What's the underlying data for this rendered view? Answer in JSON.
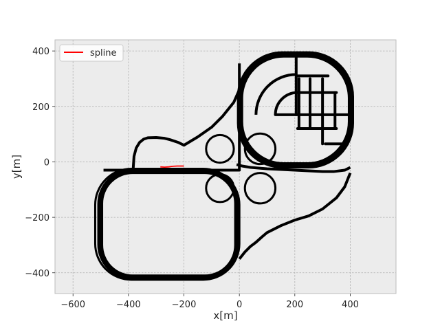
{
  "chart_data": {
    "type": "line",
    "title": "",
    "xlabel": "x[m]",
    "ylabel": "y[m]",
    "xlim": [
      -665,
      565
    ],
    "ylim": [
      -475,
      440
    ],
    "xticks": [
      -600,
      -400,
      -200,
      0,
      200,
      400
    ],
    "yticks": [
      -400,
      -200,
      0,
      200,
      400
    ],
    "xtick_labels": [
      "−600",
      "−400",
      "−200",
      "0",
      "200",
      "400"
    ],
    "ytick_labels": [
      "−400",
      "−200",
      "0",
      "200",
      "400"
    ],
    "grid": true,
    "legend_placement": "top-left",
    "background_color": "#ececec",
    "series": [
      {
        "name": "spline",
        "color": "#ff0000",
        "x": [
          -285,
          -270,
          -255,
          -240,
          -225,
          -210,
          -200
        ],
        "y": [
          -18,
          -19,
          -18,
          -16,
          -15,
          -15,
          -15
        ]
      }
    ],
    "track": {
      "color": "#000000",
      "lanes": [
        {
          "x": [
            -383,
            -380,
            -372,
            -360,
            -345,
            -330,
            -300,
            -270,
            -250,
            -220,
            -200,
            -150,
            -100,
            -60,
            -20,
            0,
            10
          ],
          "y": [
            -25,
            20,
            50,
            70,
            82,
            87,
            88,
            85,
            80,
            70,
            60,
            90,
            125,
            165,
            215,
            260,
            290
          ]
        },
        {
          "x": [
            0,
            20,
            40,
            60,
            80,
            100,
            150,
            200,
            250,
            300,
            350,
            380,
            400
          ],
          "y": [
            -350,
            -325,
            -305,
            -290,
            -272,
            -255,
            -230,
            -210,
            -195,
            -170,
            -130,
            -90,
            -40
          ]
        },
        {
          "x": [
            -490,
            -460,
            -420,
            -350,
            -200,
            -100,
            -50,
            -10,
            0,
            0
          ],
          "y": [
            -30,
            -30,
            -30,
            -30,
            -30,
            -30,
            -30,
            -30,
            -30,
            355
          ]
        },
        {
          "x": [
            -10,
            0,
            10,
            40,
            100,
            200,
            300,
            340,
            380,
            400
          ],
          "y": [
            -10,
            -12,
            -15,
            -20,
            -25,
            -30,
            -35,
            -35,
            -30,
            -20
          ]
        }
      ]
    }
  }
}
